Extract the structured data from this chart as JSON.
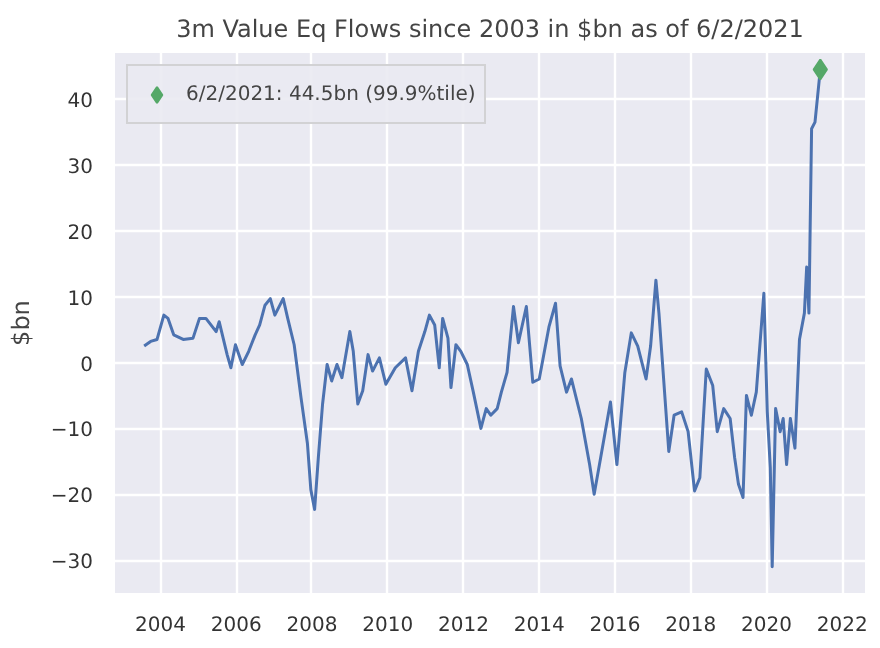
{
  "chart_data": {
    "type": "line",
    "title": "3m Value Eq Flows since 2003 in $bn as of 6/2/2021",
    "ylabel": "$bn",
    "xlim": [
      2002.8,
      2022.6
    ],
    "ylim": [
      -35,
      47
    ],
    "xticks": [
      2004,
      2006,
      2008,
      2010,
      2012,
      2014,
      2016,
      2018,
      2020,
      2022
    ],
    "yticks": [
      -30,
      -20,
      -10,
      0,
      10,
      20,
      30,
      40
    ],
    "grid": true,
    "legend": "top left",
    "series": [
      {
        "color": "#4c72b0",
        "x": [
          2003.57,
          2003.74,
          2003.91,
          2004.09,
          2004.2,
          2004.35,
          2004.6,
          2004.86,
          2005.03,
          2005.2,
          2005.47,
          2005.55,
          2005.76,
          2005.86,
          2005.98,
          2006.16,
          2006.33,
          2006.5,
          2006.62,
          2006.76,
          2006.9,
          2007.02,
          2007.24,
          2007.36,
          2007.53,
          2007.71,
          2007.88,
          2007.97,
          2008.07,
          2008.17,
          2008.28,
          2008.4,
          2008.52,
          2008.66,
          2008.79,
          2009.0,
          2009.09,
          2009.21,
          2009.34,
          2009.48,
          2009.6,
          2009.78,
          2009.95,
          2010.2,
          2010.47,
          2010.64,
          2010.81,
          2010.98,
          2011.1,
          2011.24,
          2011.36,
          2011.45,
          2011.59,
          2011.67,
          2011.8,
          2011.93,
          2012.1,
          2012.26,
          2012.46,
          2012.6,
          2012.72,
          2012.89,
          2013.0,
          2013.15,
          2013.32,
          2013.45,
          2013.66,
          2013.83,
          2014.0,
          2014.26,
          2014.43,
          2014.55,
          2014.72,
          2014.85,
          2015.11,
          2015.33,
          2015.45,
          2015.62,
          2015.88,
          2016.05,
          2016.26,
          2016.43,
          2016.6,
          2016.82,
          2016.94,
          2017.08,
          2017.16,
          2017.42,
          2017.56,
          2017.76,
          2017.93,
          2018.1,
          2018.24,
          2018.41,
          2018.58,
          2018.7,
          2018.87,
          2019.04,
          2019.16,
          2019.26,
          2019.38,
          2019.47,
          2019.6,
          2019.73,
          2019.85,
          2019.93,
          2020.02,
          2020.1,
          2020.15,
          2020.24,
          2020.36,
          2020.44,
          2020.53,
          2020.63,
          2020.75,
          2020.87,
          2021.0,
          2021.06,
          2021.12,
          2021.19,
          2021.28,
          2021.42
        ],
        "values": [
          2.5,
          3.2,
          3.5,
          7.2,
          6.7,
          4.2,
          3.5,
          3.7,
          6.7,
          6.7,
          4.7,
          6.2,
          1.2,
          -0.8,
          2.7,
          -0.3,
          1.7,
          4.2,
          5.7,
          8.7,
          9.7,
          7.2,
          9.7,
          6.7,
          2.7,
          -5.3,
          -12.3,
          -19.3,
          -22.3,
          -14.3,
          -6.3,
          -0.3,
          -2.8,
          -0.3,
          -2.3,
          4.7,
          1.7,
          -6.3,
          -4.3,
          1.2,
          -1.3,
          0.7,
          -3.3,
          -0.8,
          0.7,
          -4.3,
          1.7,
          4.7,
          7.2,
          5.7,
          -0.8,
          6.7,
          3.7,
          -3.8,
          2.7,
          1.7,
          -0.3,
          -4.5,
          -10,
          -7,
          -8,
          -7,
          -4.5,
          -1.5,
          8.5,
          3,
          8.5,
          -3,
          -2.5,
          5.5,
          9,
          -0.5,
          -4.5,
          -2.5,
          -8.5,
          -15.5,
          -20,
          -14.5,
          -6,
          -15.5,
          -1.5,
          4.5,
          2.5,
          -2.5,
          2.5,
          12.5,
          7.5,
          -13.5,
          -8,
          -7.5,
          -10.5,
          -19.5,
          -17.5,
          -1,
          -3.5,
          -10.5,
          -7,
          -8.5,
          -14.5,
          -18.5,
          -20.5,
          -5,
          -8,
          -4.5,
          4.5,
          10.5,
          -7.5,
          -16,
          -31,
          -7,
          -10.5,
          -8.5,
          -15.5,
          -8.5,
          -13,
          3.5,
          7.5,
          14.5,
          7.5,
          35.5,
          36.5,
          44.5
        ]
      },
      {
        "type": "scatter",
        "name": "6/2/2021: 44.5bn (99.9%tile)",
        "color": "#55a868",
        "marker": "diamond",
        "x": [
          2021.42
        ],
        "values": [
          44.5
        ]
      }
    ]
  }
}
